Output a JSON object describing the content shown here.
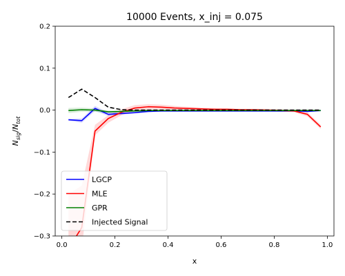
{
  "chart_data": {
    "type": "line",
    "title": "10000 Events, x_inj = 0.075",
    "xlabel": "x",
    "ylabel_main": "N",
    "ylabel_num_sub": "sig",
    "ylabel_den_sub": "tot",
    "xlim": [
      -0.025,
      1.025
    ],
    "ylim": [
      -0.3,
      0.2
    ],
    "xticks": [
      0.0,
      0.2,
      0.4,
      0.6,
      0.8,
      1.0
    ],
    "xtick_labels": [
      "0.0",
      "0.2",
      "0.4",
      "0.6",
      "0.8",
      "1.0"
    ],
    "yticks": [
      -0.3,
      -0.2,
      -0.1,
      0.0,
      0.1,
      0.2
    ],
    "ytick_labels": [
      "−0.3",
      "−0.2",
      "−0.1",
      "0.0",
      "0.1",
      "0.2"
    ],
    "grid": false,
    "legend_position": "lower-left",
    "x": [
      0.025,
      0.075,
      0.125,
      0.175,
      0.225,
      0.275,
      0.325,
      0.375,
      0.425,
      0.475,
      0.525,
      0.575,
      0.625,
      0.675,
      0.725,
      0.775,
      0.825,
      0.875,
      0.925,
      0.975
    ],
    "series": [
      {
        "name": "LGCP",
        "color": "#0000ff",
        "style": "solid",
        "values": [
          -0.023,
          -0.025,
          0.004,
          -0.01,
          -0.008,
          -0.006,
          -0.003,
          -0.002,
          -0.002,
          -0.002,
          -0.002,
          -0.002,
          -0.002,
          -0.002,
          -0.002,
          -0.002,
          -0.002,
          -0.002,
          -0.003,
          -0.001
        ],
        "lower": [
          -0.025,
          -0.03,
          -0.002,
          -0.014,
          -0.011,
          -0.008,
          -0.005,
          -0.004,
          -0.004,
          -0.004,
          -0.004,
          -0.004,
          -0.004,
          -0.004,
          -0.004,
          -0.004,
          -0.004,
          -0.004,
          -0.005,
          -0.003
        ],
        "upper": [
          -0.021,
          -0.02,
          0.01,
          -0.006,
          -0.005,
          -0.004,
          -0.001,
          0.0,
          0.0,
          0.0,
          0.0,
          0.0,
          0.0,
          0.0,
          0.0,
          0.0,
          0.0,
          0.0,
          -0.001,
          0.001
        ]
      },
      {
        "name": "MLE",
        "color": "#ff0000",
        "style": "solid",
        "values": [
          -0.33,
          -0.28,
          -0.05,
          -0.02,
          -0.005,
          0.005,
          0.008,
          0.007,
          0.005,
          0.004,
          0.003,
          0.002,
          0.002,
          0.001,
          0.001,
          0.0,
          -0.001,
          -0.002,
          -0.01,
          -0.04
        ],
        "lower": [
          -0.36,
          -0.33,
          -0.06,
          -0.03,
          -0.012,
          -0.002,
          0.002,
          0.002,
          0.001,
          0.001,
          0.0,
          -0.001,
          -0.001,
          -0.002,
          -0.002,
          -0.003,
          -0.004,
          -0.005,
          -0.015,
          -0.045
        ],
        "upper": [
          -0.2,
          -0.18,
          -0.035,
          -0.012,
          0.002,
          0.012,
          0.014,
          0.013,
          0.01,
          0.008,
          0.006,
          0.005,
          0.004,
          0.003,
          0.003,
          0.003,
          0.002,
          0.001,
          -0.005,
          -0.035
        ]
      },
      {
        "name": "GPR",
        "color": "#008000",
        "style": "solid",
        "values": [
          -0.001,
          0.001,
          0.0,
          -0.004,
          -0.003,
          -0.002,
          -0.001,
          -0.001,
          -0.001,
          -0.001,
          -0.001,
          -0.001,
          -0.001,
          -0.001,
          -0.001,
          -0.001,
          -0.001,
          -0.001,
          -0.001,
          -0.001
        ],
        "lower": [
          -0.007,
          -0.004,
          -0.004,
          -0.007,
          -0.005,
          -0.004,
          -0.003,
          -0.003,
          -0.003,
          -0.003,
          -0.003,
          -0.003,
          -0.003,
          -0.003,
          -0.003,
          -0.003,
          -0.003,
          -0.003,
          -0.003,
          -0.003
        ],
        "upper": [
          0.005,
          0.006,
          0.004,
          -0.001,
          -0.001,
          0.0,
          0.001,
          0.001,
          0.001,
          0.001,
          0.001,
          0.001,
          0.001,
          0.001,
          0.001,
          0.001,
          0.001,
          0.001,
          0.001,
          0.001
        ]
      },
      {
        "name": "Injected Signal",
        "color": "#000000",
        "style": "dashed",
        "values": [
          0.03,
          0.05,
          0.03,
          0.007,
          0.001,
          0.0,
          0.0,
          0.0,
          0.0,
          0.0,
          0.0,
          0.0,
          0.0,
          0.0,
          0.0,
          0.0,
          0.0,
          0.0,
          0.0,
          0.0
        ]
      }
    ]
  }
}
